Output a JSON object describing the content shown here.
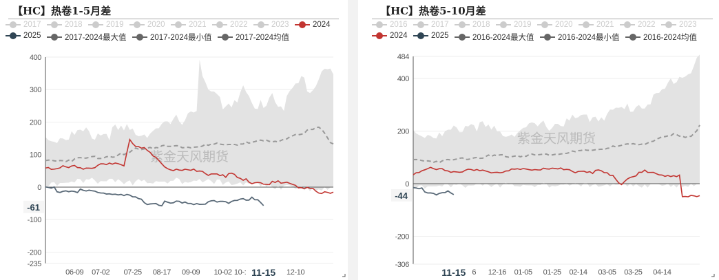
{
  "charts": [
    {
      "title": "【HC】热卷1-5月差",
      "legend": [
        {
          "label": "2017",
          "color": "#ccc",
          "off": true
        },
        {
          "label": "2018",
          "color": "#ccc",
          "off": true
        },
        {
          "label": "2019",
          "color": "#ccc",
          "off": true
        },
        {
          "label": "2020",
          "color": "#ccc",
          "off": true
        },
        {
          "label": "2021",
          "color": "#ccc",
          "off": true
        },
        {
          "label": "2022",
          "color": "#ccc",
          "off": true
        },
        {
          "label": "2023",
          "color": "#ccc",
          "off": true
        },
        {
          "label": "2024",
          "color": "#c23531"
        },
        {
          "label": "2025",
          "color": "#2f4554"
        },
        {
          "label": "2017-2024最大值",
          "color": "#666"
        },
        {
          "label": "2017-2024最小值",
          "color": "#666"
        },
        {
          "label": "2017-2024均值",
          "color": "#666"
        }
      ],
      "watermark": "紫金天风期货",
      "ylim": [
        -235,
        400
      ],
      "yticks": [
        "400",
        "300",
        "200",
        "100",
        "0",
        "-100",
        "-200",
        "-235"
      ],
      "current_label": "-61",
      "current_value": -61,
      "xticks": [
        {
          "i": 10,
          "label": "06-09"
        },
        {
          "i": 19,
          "label": "07-02"
        },
        {
          "i": 30,
          "label": "07-25"
        },
        {
          "i": 40,
          "label": "08-17"
        },
        {
          "i": 50,
          "label": "09-09"
        },
        {
          "i": 61,
          "label": "10-02"
        },
        {
          "i": 66,
          "label": "10-:"
        },
        {
          "i": 75,
          "label": "11-15",
          "bold": true
        },
        {
          "i": 86,
          "label": "12-10"
        }
      ],
      "chart_data": {
        "type": "line",
        "n": 100,
        "band_upper": [
          [
            0,
            150
          ],
          [
            10,
            160
          ],
          [
            25,
            170
          ],
          [
            40,
            175
          ],
          [
            48,
            220
          ],
          [
            52,
            250
          ],
          [
            53,
            380
          ],
          [
            55,
            300
          ],
          [
            62,
            250
          ],
          [
            68,
            300
          ],
          [
            72,
            230
          ],
          [
            78,
            290
          ],
          [
            82,
            250
          ],
          [
            88,
            330
          ],
          [
            92,
            300
          ],
          [
            96,
            380
          ],
          [
            99,
            340
          ]
        ],
        "band_lower": [
          [
            0,
            20
          ],
          [
            15,
            30
          ],
          [
            30,
            25
          ],
          [
            45,
            30
          ],
          [
            60,
            25
          ],
          [
            75,
            15
          ],
          [
            85,
            5
          ],
          [
            99,
            0
          ]
        ],
        "mean": [
          [
            0,
            80
          ],
          [
            10,
            85
          ],
          [
            20,
            95
          ],
          [
            28,
            100
          ],
          [
            32,
            120
          ],
          [
            40,
            125
          ],
          [
            50,
            125
          ],
          [
            60,
            130
          ],
          [
            70,
            135
          ],
          [
            80,
            145
          ],
          [
            88,
            160
          ],
          [
            94,
            190
          ],
          [
            99,
            130
          ]
        ],
        "s2024": [
          [
            0,
            65
          ],
          [
            3,
            55
          ],
          [
            10,
            62
          ],
          [
            20,
            65
          ],
          [
            27,
            70
          ],
          [
            29,
            150
          ],
          [
            31,
            130
          ],
          [
            34,
            115
          ],
          [
            39,
            80
          ],
          [
            42,
            60
          ],
          [
            46,
            55
          ],
          [
            55,
            45
          ],
          [
            65,
            35
          ],
          [
            67,
            20
          ],
          [
            75,
            15
          ],
          [
            85,
            10
          ],
          [
            88,
            0
          ],
          [
            91,
            0
          ],
          [
            94,
            -20
          ],
          [
            99,
            -20
          ]
        ],
        "s2025": [
          [
            0,
            0
          ],
          [
            5,
            -10
          ],
          [
            15,
            -15
          ],
          [
            24,
            -20
          ],
          [
            30,
            -35
          ],
          [
            36,
            -50
          ],
          [
            45,
            -50
          ],
          [
            55,
            -48
          ],
          [
            62,
            -45
          ],
          [
            68,
            -35
          ],
          [
            73,
            -40
          ],
          [
            75,
            -61
          ]
        ]
      }
    },
    {
      "title": "【HC】热卷5-10月差",
      "legend": [
        {
          "label": "2016",
          "color": "#ccc",
          "off": true
        },
        {
          "label": "2017",
          "color": "#ccc",
          "off": true
        },
        {
          "label": "2018",
          "color": "#ccc",
          "off": true
        },
        {
          "label": "2019",
          "color": "#ccc",
          "off": true
        },
        {
          "label": "2020",
          "color": "#ccc",
          "off": true
        },
        {
          "label": "2021",
          "color": "#ccc",
          "off": true
        },
        {
          "label": "2022",
          "color": "#ccc",
          "off": true
        },
        {
          "label": "2023",
          "color": "#ccc",
          "off": true
        },
        {
          "label": "2024",
          "color": "#c23531"
        },
        {
          "label": "2025",
          "color": "#2f4554"
        },
        {
          "label": "2016-2024最大值",
          "color": "#666"
        },
        {
          "label": "2016-2024最小值",
          "color": "#666"
        },
        {
          "label": "2016-2024均值",
          "color": "#666"
        }
      ],
      "watermark": "紫金天风期货",
      "ylim": [
        -306,
        484
      ],
      "yticks": [
        "484",
        "400",
        "200",
        "0",
        "-200",
        "-306"
      ],
      "current_label": "-44",
      "current_value": -44,
      "xticks": [
        {
          "i": 14,
          "label": "11-15",
          "bold": true
        },
        {
          "i": 21,
          "label": "6"
        },
        {
          "i": 29,
          "label": "12-16"
        },
        {
          "i": 38,
          "label": "01-05"
        },
        {
          "i": 48,
          "label": "01-25"
        },
        {
          "i": 57,
          "label": "02-14"
        },
        {
          "i": 67,
          "label": "03-05"
        },
        {
          "i": 76,
          "label": "03-25"
        },
        {
          "i": 86,
          "label": "04-14"
        }
      ],
      "chart_data": {
        "type": "line",
        "n": 100,
        "band_upper": [
          [
            0,
            200
          ],
          [
            10,
            180
          ],
          [
            20,
            230
          ],
          [
            30,
            190
          ],
          [
            45,
            220
          ],
          [
            55,
            240
          ],
          [
            65,
            260
          ],
          [
            72,
            280
          ],
          [
            78,
            300
          ],
          [
            85,
            330
          ],
          [
            90,
            400
          ],
          [
            95,
            420
          ],
          [
            99,
            484
          ]
        ],
        "band_lower": [
          [
            0,
            0
          ],
          [
            30,
            5
          ],
          [
            60,
            5
          ],
          [
            99,
            0
          ]
        ],
        "mean": [
          [
            0,
            90
          ],
          [
            10,
            85
          ],
          [
            20,
            100
          ],
          [
            30,
            105
          ],
          [
            45,
            110
          ],
          [
            60,
            125
          ],
          [
            70,
            140
          ],
          [
            80,
            155
          ],
          [
            90,
            185
          ],
          [
            96,
            180
          ],
          [
            99,
            220
          ]
        ],
        "s2024": [
          [
            0,
            40
          ],
          [
            5,
            55
          ],
          [
            15,
            50
          ],
          [
            25,
            45
          ],
          [
            35,
            50
          ],
          [
            45,
            60
          ],
          [
            55,
            50
          ],
          [
            65,
            45
          ],
          [
            70,
            20
          ],
          [
            72,
            0
          ],
          [
            75,
            30
          ],
          [
            80,
            45
          ],
          [
            85,
            35
          ],
          [
            92,
            30
          ],
          [
            93,
            -50
          ],
          [
            99,
            -50
          ]
        ],
        "s2025": [
          [
            0,
            -15
          ],
          [
            4,
            -25
          ],
          [
            8,
            -40
          ],
          [
            11,
            -30
          ],
          [
            14,
            -44
          ]
        ]
      }
    }
  ]
}
